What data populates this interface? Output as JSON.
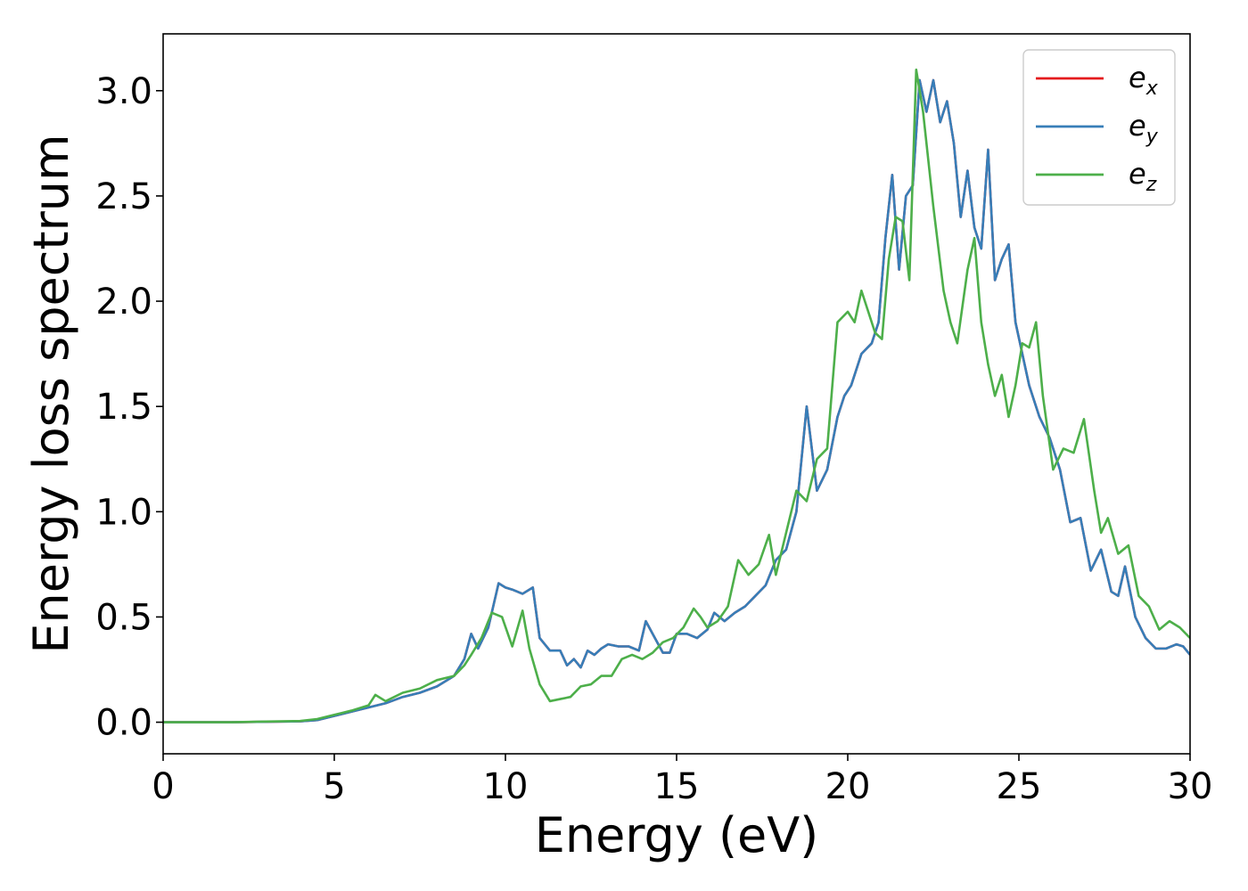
{
  "chart_data": {
    "type": "line",
    "xlabel": "Energy (eV)",
    "ylabel": "Energy loss spectrum",
    "xlim": [
      0,
      30
    ],
    "ylim": [
      -0.15,
      3.27
    ],
    "xticks": [
      0,
      5,
      10,
      15,
      20,
      25,
      30
    ],
    "xtick_labels": [
      "0",
      "5",
      "10",
      "15",
      "20",
      "25",
      "30"
    ],
    "yticks": [
      0.0,
      0.5,
      1.0,
      1.5,
      2.0,
      2.5,
      3.0
    ],
    "ytick_labels": [
      "0.0",
      "0.5",
      "1.0",
      "1.5",
      "2.0",
      "2.5",
      "3.0"
    ],
    "grid": false,
    "legend_position": "top-right",
    "series": [
      {
        "name": "e",
        "sub": "x",
        "color": "#e41a1c",
        "x": [
          0,
          1,
          2,
          3,
          4,
          4.5,
          5,
          5.5,
          6,
          6.5,
          7,
          7.5,
          8,
          8.5,
          8.8,
          9,
          9.2,
          9.5,
          9.8,
          10,
          10.2,
          10.5,
          10.8,
          11,
          11.3,
          11.6,
          11.8,
          12,
          12.2,
          12.4,
          12.6,
          12.8,
          13,
          13.3,
          13.6,
          13.9,
          14.1,
          14.3,
          14.6,
          14.8,
          15,
          15.3,
          15.6,
          15.9,
          16.1,
          16.4,
          16.7,
          17,
          17.3,
          17.6,
          17.9,
          18.2,
          18.5,
          18.8,
          19.1,
          19.4,
          19.7,
          19.9,
          20.1,
          20.4,
          20.7,
          20.9,
          21.1,
          21.3,
          21.5,
          21.7,
          21.9,
          22.1,
          22.3,
          22.5,
          22.7,
          22.9,
          23.1,
          23.3,
          23.5,
          23.7,
          23.9,
          24.1,
          24.3,
          24.5,
          24.7,
          24.9,
          25.1,
          25.3,
          25.6,
          25.9,
          26.2,
          26.5,
          26.8,
          27.1,
          27.4,
          27.7,
          27.9,
          28.1,
          28.4,
          28.7,
          29,
          29.3,
          29.6,
          29.8,
          30
        ],
        "y": [
          0,
          0,
          0,
          0.002,
          0.004,
          0.01,
          0.03,
          0.05,
          0.07,
          0.09,
          0.12,
          0.14,
          0.17,
          0.22,
          0.3,
          0.42,
          0.35,
          0.45,
          0.66,
          0.64,
          0.63,
          0.61,
          0.64,
          0.4,
          0.34,
          0.34,
          0.27,
          0.3,
          0.26,
          0.34,
          0.32,
          0.35,
          0.37,
          0.36,
          0.36,
          0.34,
          0.48,
          0.42,
          0.33,
          0.33,
          0.42,
          0.42,
          0.4,
          0.44,
          0.52,
          0.48,
          0.52,
          0.55,
          0.6,
          0.65,
          0.77,
          0.82,
          1.0,
          1.5,
          1.1,
          1.2,
          1.45,
          1.55,
          1.6,
          1.75,
          1.8,
          1.9,
          2.3,
          2.6,
          2.15,
          2.5,
          2.55,
          3.05,
          2.9,
          3.05,
          2.85,
          2.95,
          2.75,
          2.4,
          2.62,
          2.35,
          2.25,
          2.72,
          2.1,
          2.2,
          2.27,
          1.9,
          1.75,
          1.6,
          1.45,
          1.35,
          1.2,
          0.95,
          0.97,
          0.72,
          0.82,
          0.62,
          0.6,
          0.74,
          0.5,
          0.4,
          0.35,
          0.35,
          0.37,
          0.36,
          0.32
        ]
      },
      {
        "name": "e",
        "sub": "y",
        "color": "#377eb8",
        "x": [
          0,
          1,
          2,
          3,
          4,
          4.5,
          5,
          5.5,
          6,
          6.5,
          7,
          7.5,
          8,
          8.5,
          8.8,
          9,
          9.2,
          9.5,
          9.8,
          10,
          10.2,
          10.5,
          10.8,
          11,
          11.3,
          11.6,
          11.8,
          12,
          12.2,
          12.4,
          12.6,
          12.8,
          13,
          13.3,
          13.6,
          13.9,
          14.1,
          14.3,
          14.6,
          14.8,
          15,
          15.3,
          15.6,
          15.9,
          16.1,
          16.4,
          16.7,
          17,
          17.3,
          17.6,
          17.9,
          18.2,
          18.5,
          18.8,
          19.1,
          19.4,
          19.7,
          19.9,
          20.1,
          20.4,
          20.7,
          20.9,
          21.1,
          21.3,
          21.5,
          21.7,
          21.9,
          22.1,
          22.3,
          22.5,
          22.7,
          22.9,
          23.1,
          23.3,
          23.5,
          23.7,
          23.9,
          24.1,
          24.3,
          24.5,
          24.7,
          24.9,
          25.1,
          25.3,
          25.6,
          25.9,
          26.2,
          26.5,
          26.8,
          27.1,
          27.4,
          27.7,
          27.9,
          28.1,
          28.4,
          28.7,
          29,
          29.3,
          29.6,
          29.8,
          30
        ],
        "y": [
          0,
          0,
          0,
          0.002,
          0.004,
          0.01,
          0.03,
          0.05,
          0.07,
          0.09,
          0.12,
          0.14,
          0.17,
          0.22,
          0.3,
          0.42,
          0.35,
          0.45,
          0.66,
          0.64,
          0.63,
          0.61,
          0.64,
          0.4,
          0.34,
          0.34,
          0.27,
          0.3,
          0.26,
          0.34,
          0.32,
          0.35,
          0.37,
          0.36,
          0.36,
          0.34,
          0.48,
          0.42,
          0.33,
          0.33,
          0.42,
          0.42,
          0.4,
          0.44,
          0.52,
          0.48,
          0.52,
          0.55,
          0.6,
          0.65,
          0.77,
          0.82,
          1.0,
          1.5,
          1.1,
          1.2,
          1.45,
          1.55,
          1.6,
          1.75,
          1.8,
          1.9,
          2.3,
          2.6,
          2.15,
          2.5,
          2.55,
          3.05,
          2.9,
          3.05,
          2.85,
          2.95,
          2.75,
          2.4,
          2.62,
          2.35,
          2.25,
          2.72,
          2.1,
          2.2,
          2.27,
          1.9,
          1.75,
          1.6,
          1.45,
          1.35,
          1.2,
          0.95,
          0.97,
          0.72,
          0.82,
          0.62,
          0.6,
          0.74,
          0.5,
          0.4,
          0.35,
          0.35,
          0.37,
          0.36,
          0.32
        ]
      },
      {
        "name": "e",
        "sub": "z",
        "color": "#4daf4a",
        "x": [
          0,
          1,
          2,
          3,
          4,
          4.5,
          5,
          5.5,
          6,
          6.2,
          6.5,
          7,
          7.5,
          8,
          8.5,
          8.8,
          9,
          9.3,
          9.6,
          9.9,
          10.2,
          10.5,
          10.7,
          11,
          11.3,
          11.6,
          11.9,
          12.2,
          12.5,
          12.8,
          13.1,
          13.4,
          13.7,
          14,
          14.3,
          14.6,
          14.9,
          15.2,
          15.5,
          15.7,
          15.9,
          16.2,
          16.5,
          16.8,
          17.1,
          17.4,
          17.7,
          17.9,
          18.2,
          18.5,
          18.8,
          19.1,
          19.4,
          19.7,
          20,
          20.2,
          20.4,
          20.6,
          20.8,
          21,
          21.2,
          21.4,
          21.6,
          21.8,
          22,
          22.2,
          22.5,
          22.8,
          23,
          23.2,
          23.5,
          23.7,
          23.9,
          24.1,
          24.3,
          24.5,
          24.7,
          24.9,
          25.1,
          25.3,
          25.5,
          25.7,
          26,
          26.3,
          26.6,
          26.9,
          27.2,
          27.4,
          27.6,
          27.9,
          28.2,
          28.5,
          28.8,
          29.1,
          29.4,
          29.7,
          30
        ],
        "y": [
          0,
          0,
          0,
          0.003,
          0.006,
          0.015,
          0.035,
          0.055,
          0.08,
          0.13,
          0.1,
          0.14,
          0.16,
          0.2,
          0.22,
          0.27,
          0.32,
          0.4,
          0.52,
          0.5,
          0.36,
          0.53,
          0.35,
          0.18,
          0.1,
          0.11,
          0.12,
          0.17,
          0.18,
          0.22,
          0.22,
          0.3,
          0.32,
          0.3,
          0.33,
          0.38,
          0.4,
          0.45,
          0.54,
          0.5,
          0.45,
          0.48,
          0.55,
          0.77,
          0.7,
          0.75,
          0.89,
          0.7,
          0.9,
          1.1,
          1.05,
          1.25,
          1.3,
          1.9,
          1.95,
          1.9,
          2.05,
          1.95,
          1.85,
          1.82,
          2.2,
          2.4,
          2.38,
          2.1,
          3.1,
          2.9,
          2.45,
          2.05,
          1.9,
          1.8,
          2.15,
          2.3,
          1.9,
          1.7,
          1.55,
          1.65,
          1.45,
          1.6,
          1.8,
          1.78,
          1.9,
          1.55,
          1.2,
          1.3,
          1.28,
          1.44,
          1.1,
          0.9,
          0.97,
          0.8,
          0.84,
          0.6,
          0.55,
          0.44,
          0.48,
          0.45,
          0.4
        ]
      }
    ]
  }
}
